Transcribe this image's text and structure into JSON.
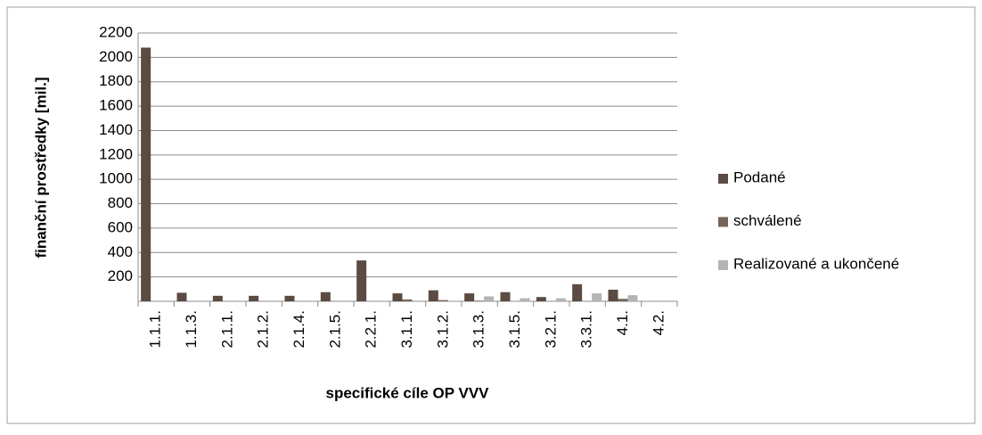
{
  "chart_data": {
    "type": "bar",
    "xlabel": "specifické cíle OP VVV",
    "ylabel": "finanční prostředky [mil.]",
    "categories": [
      "1.1.1.",
      "1.1.3.",
      "2.1.1.",
      "2.1.2.",
      "2.1.4.",
      "2.1.5.",
      "2.2.1.",
      "3.1.1.",
      "3.1.2.",
      "3.1.3.",
      "3.1.5.",
      "3.2.1.",
      "3.3.1.",
      "4.1.",
      "4.2."
    ],
    "series": [
      {
        "name": "Podané",
        "color": "#5b4b43",
        "values": [
          2080,
          70,
          45,
          45,
          45,
          75,
          335,
          65,
          90,
          65,
          75,
          35,
          140,
          95,
          0
        ]
      },
      {
        "name": "schválené",
        "color": "#76645b",
        "values": [
          0,
          0,
          0,
          0,
          0,
          0,
          0,
          15,
          10,
          5,
          0,
          0,
          0,
          20,
          0
        ]
      },
      {
        "name": "Realizované a ukončené",
        "color": "#b4b4b4",
        "values": [
          0,
          0,
          0,
          0,
          0,
          0,
          0,
          0,
          5,
          40,
          25,
          25,
          65,
          50,
          0
        ]
      }
    ],
    "ylim": [
      0,
      2200
    ],
    "yticks": [
      200,
      400,
      600,
      800,
      1000,
      1200,
      1400,
      1600,
      1800,
      2000,
      2200
    ],
    "grid": true,
    "legend": "right"
  }
}
